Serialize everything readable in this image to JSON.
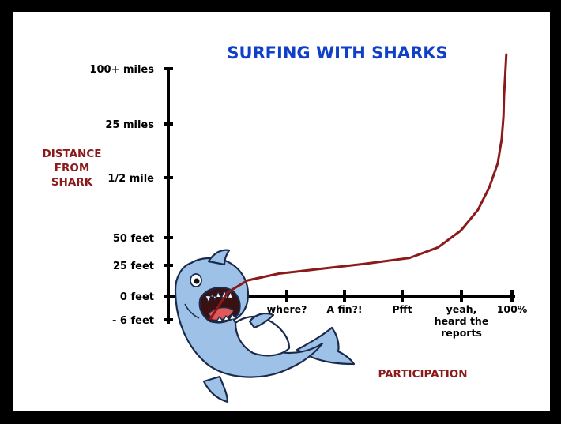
{
  "chart_data": {
    "type": "line",
    "title": "SURFING WITH SHARKS",
    "ylabel_lines": [
      "DISTANCE",
      "FROM",
      "SHARK"
    ],
    "xlabel": "PARTICIPATION",
    "yticks": [
      "100+ miles",
      "25 miles",
      "1/2 mile",
      "50 feet",
      "25 feet",
      "0 feet",
      "- 6 feet"
    ],
    "xticks": [
      {
        "lines": [
          "where?"
        ]
      },
      {
        "lines": [
          "A fin?!"
        ]
      },
      {
        "lines": [
          "Pfft"
        ]
      },
      {
        "lines": [
          "yeah,",
          "heard the",
          "reports"
        ]
      },
      {
        "lines": [
          "100%"
        ]
      }
    ],
    "series": [
      {
        "color": "#8b1a1a",
        "points": [
          [
            -0.3,
            -0.6
          ],
          [
            0,
            0.1
          ],
          [
            0.35,
            0.42
          ],
          [
            0.9,
            0.6
          ],
          [
            1.6,
            0.72
          ],
          [
            2.4,
            0.86
          ],
          [
            3.2,
            1.02
          ],
          [
            3.7,
            1.3
          ],
          [
            4.1,
            1.75
          ],
          [
            4.4,
            2.3
          ],
          [
            4.6,
            2.9
          ],
          [
            4.75,
            3.55
          ],
          [
            4.82,
            4.2
          ],
          [
            4.85,
            4.8
          ],
          [
            4.86,
            5.35
          ],
          [
            4.88,
            5.9
          ],
          [
            4.9,
            6.45
          ]
        ]
      }
    ],
    "grid": false,
    "legend": "none"
  },
  "colors": {
    "frame": "#000000",
    "title": "#1040c8",
    "curve": "#8b1a1a",
    "shark_body": "#9ec1e8",
    "shark_outline": "#1a2a4a"
  },
  "icons": {
    "mascot": "shark-icon"
  }
}
